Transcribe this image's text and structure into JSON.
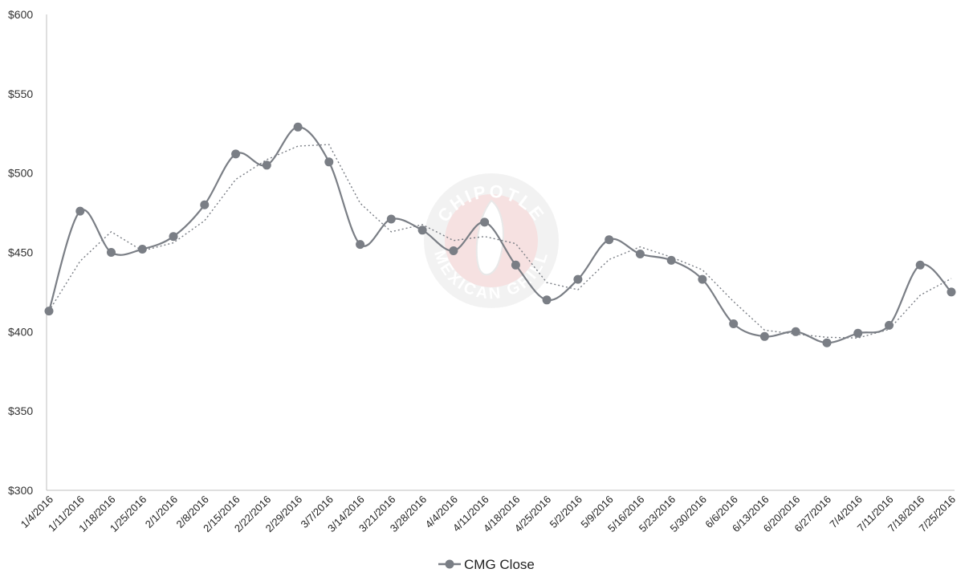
{
  "chart_data": {
    "type": "line",
    "title": "",
    "xlabel": "",
    "ylabel": "",
    "ylim": [
      300,
      600
    ],
    "y_ticks": [
      300,
      350,
      400,
      450,
      500,
      550,
      600
    ],
    "y_tick_labels": [
      "$300",
      "$350",
      "$400",
      "$450",
      "$500",
      "$550",
      "$600"
    ],
    "grid": false,
    "legend_position": "bottom",
    "categories": [
      "1/4/2016",
      "1/11/2016",
      "1/18/2016",
      "1/25/2016",
      "2/1/2016",
      "2/8/2016",
      "2/15/2016",
      "2/22/2016",
      "2/29/2016",
      "3/7/2016",
      "3/14/2016",
      "3/21/2016",
      "3/28/2016",
      "4/4/2016",
      "4/11/2016",
      "4/18/2016",
      "4/25/2016",
      "5/2/2016",
      "5/9/2016",
      "5/16/2016",
      "5/23/2016",
      "5/30/2016",
      "6/6/2016",
      "6/13/2016",
      "6/20/2016",
      "6/27/2016",
      "7/4/2016",
      "7/11/2016",
      "7/18/2016",
      "7/25/2016"
    ],
    "series": [
      {
        "name": "CMG Close",
        "color": "#7a7e85",
        "values": [
          413,
          476,
          450,
          452,
          460,
          480,
          512,
          505,
          529,
          507,
          455,
          471,
          464,
          451,
          469,
          442,
          420,
          433,
          458,
          449,
          445,
          433,
          405,
          397,
          400,
          393,
          399,
          404,
          442,
          425
        ]
      }
    ],
    "trendline": {
      "style": "dotted",
      "color": "#7a7e85"
    },
    "watermark": {
      "type": "logo",
      "text_top": "CHIPOTLE",
      "text_bottom": "MEXICAN GRILL"
    }
  }
}
